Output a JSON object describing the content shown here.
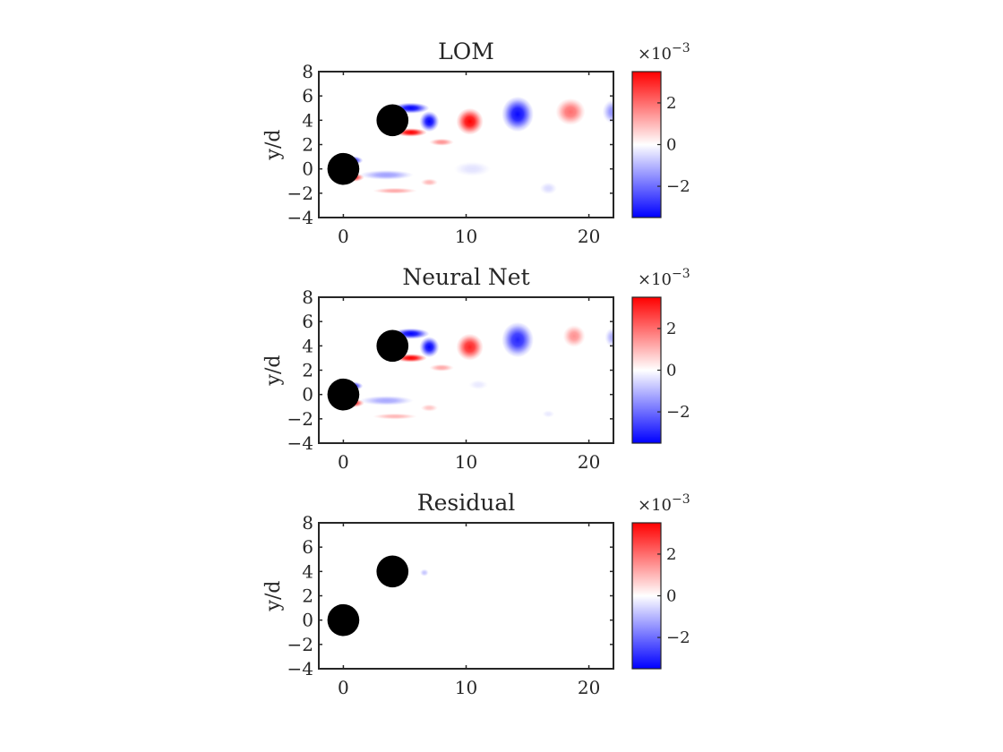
{
  "chart_data": [
    {
      "type": "heatmap",
      "title": "LOM",
      "xlabel": "",
      "ylabel": "y/d",
      "xlim": [
        -2,
        22
      ],
      "ylim": [
        -4,
        8
      ],
      "xticks": [
        "0",
        "10",
        "20"
      ],
      "yticks": [
        "-4",
        "-2",
        "0",
        "2",
        "4",
        "6",
        "8"
      ],
      "colorbar": {
        "exponent": "×10^-3",
        "ticks": [
          "2",
          "0",
          "-2"
        ],
        "range": [
          -3.5,
          3.5
        ],
        "colormap": [
          "#0000ff",
          "#ffffff",
          "#ff0000"
        ]
      },
      "cylinders": [
        {
          "x": 0,
          "y": 0
        },
        {
          "x": 4,
          "y": 4
        }
      ],
      "vortices": [
        {
          "x": 5.5,
          "y": 5.0,
          "sx": 1.5,
          "sy": 0.45,
          "value": -3.5
        },
        {
          "x": 7.0,
          "y": 3.9,
          "sx": 0.8,
          "sy": 0.85,
          "value": -3.5
        },
        {
          "x": 5.5,
          "y": 3.0,
          "sx": 1.3,
          "sy": 0.35,
          "value": 3.5
        },
        {
          "x": 10.3,
          "y": 3.9,
          "sx": 1.1,
          "sy": 1.1,
          "value": 3.5
        },
        {
          "x": 14.2,
          "y": 4.5,
          "sx": 1.3,
          "sy": 1.45,
          "value": -3.4
        },
        {
          "x": 18.5,
          "y": 4.7,
          "sx": 1.2,
          "sy": 1.1,
          "value": 2.0
        },
        {
          "x": 22.0,
          "y": 4.7,
          "sx": 0.9,
          "sy": 1.0,
          "value": -1.6
        },
        {
          "x": 8.0,
          "y": 2.2,
          "sx": 1.0,
          "sy": 0.3,
          "value": 1.5
        },
        {
          "x": 0.8,
          "y": 0.7,
          "sx": 0.8,
          "sy": 0.35,
          "value": -3.0
        },
        {
          "x": 0.8,
          "y": -0.7,
          "sx": 0.9,
          "sy": 0.35,
          "value": 3.0
        },
        {
          "x": 3.5,
          "y": -0.5,
          "sx": 2.2,
          "sy": 0.4,
          "value": -1.3
        },
        {
          "x": 4.2,
          "y": -1.8,
          "sx": 1.8,
          "sy": 0.25,
          "value": 1.2
        },
        {
          "x": 7.0,
          "y": -1.1,
          "sx": 0.7,
          "sy": 0.3,
          "value": 1.0
        },
        {
          "x": 10.5,
          "y": 0.0,
          "sx": 1.5,
          "sy": 0.6,
          "value": -0.4
        },
        {
          "x": 16.7,
          "y": -1.6,
          "sx": 0.7,
          "sy": 0.5,
          "value": -0.5
        }
      ]
    },
    {
      "type": "heatmap",
      "title": "Neural Net",
      "xlabel": "",
      "ylabel": "y/d",
      "xlim": [
        -2,
        22
      ],
      "ylim": [
        -4,
        8
      ],
      "xticks": [
        "0",
        "10",
        "20"
      ],
      "yticks": [
        "-4",
        "-2",
        "0",
        "2",
        "4",
        "6",
        "8"
      ],
      "colorbar": {
        "exponent": "×10^-3",
        "ticks": [
          "2",
          "0",
          "-2"
        ],
        "range": [
          -3.5,
          3.5
        ],
        "colormap": [
          "#0000ff",
          "#ffffff",
          "#ff0000"
        ]
      },
      "cylinders": [
        {
          "x": 0,
          "y": 0
        },
        {
          "x": 4,
          "y": 4
        }
      ],
      "vortices": [
        {
          "x": 5.5,
          "y": 5.0,
          "sx": 1.5,
          "sy": 0.45,
          "value": -3.5
        },
        {
          "x": 7.0,
          "y": 3.9,
          "sx": 0.8,
          "sy": 0.85,
          "value": -3.5
        },
        {
          "x": 5.5,
          "y": 3.0,
          "sx": 1.3,
          "sy": 0.35,
          "value": 3.5
        },
        {
          "x": 10.3,
          "y": 3.9,
          "sx": 1.1,
          "sy": 1.1,
          "value": 3.0
        },
        {
          "x": 14.2,
          "y": 4.5,
          "sx": 1.3,
          "sy": 1.45,
          "value": -3.0
        },
        {
          "x": 18.8,
          "y": 4.8,
          "sx": 0.9,
          "sy": 0.9,
          "value": 1.5
        },
        {
          "x": 22.0,
          "y": 4.7,
          "sx": 0.7,
          "sy": 0.8,
          "value": -1.2
        },
        {
          "x": 8.0,
          "y": 2.2,
          "sx": 1.0,
          "sy": 0.3,
          "value": 1.2
        },
        {
          "x": 0.8,
          "y": 0.7,
          "sx": 0.8,
          "sy": 0.35,
          "value": -3.0
        },
        {
          "x": 0.8,
          "y": -0.7,
          "sx": 0.9,
          "sy": 0.35,
          "value": 3.0
        },
        {
          "x": 3.5,
          "y": -0.5,
          "sx": 2.2,
          "sy": 0.4,
          "value": -1.2
        },
        {
          "x": 4.2,
          "y": -1.8,
          "sx": 1.8,
          "sy": 0.25,
          "value": 1.0
        },
        {
          "x": 7.0,
          "y": -1.1,
          "sx": 0.7,
          "sy": 0.3,
          "value": 0.8
        },
        {
          "x": 11.0,
          "y": 0.8,
          "sx": 0.8,
          "sy": 0.4,
          "value": -0.3
        },
        {
          "x": 16.7,
          "y": -1.6,
          "sx": 0.5,
          "sy": 0.3,
          "value": -0.3
        }
      ]
    },
    {
      "type": "heatmap",
      "title": "Residual",
      "xlabel": "",
      "ylabel": "y/d",
      "xlim": [
        -2,
        22
      ],
      "ylim": [
        -4,
        8
      ],
      "xticks": [
        "0",
        "10",
        "20"
      ],
      "yticks": [
        "-4",
        "-2",
        "0",
        "2",
        "4",
        "6",
        "8"
      ],
      "colorbar": {
        "exponent": "×10^-3",
        "ticks": [
          "2",
          "0",
          "-2"
        ],
        "range": [
          -3.5,
          3.5
        ],
        "colormap": [
          "#0000ff",
          "#ffffff",
          "#ff0000"
        ]
      },
      "cylinders": [
        {
          "x": 0,
          "y": 0
        },
        {
          "x": 4,
          "y": 4
        }
      ],
      "vortices": [
        {
          "x": 6.6,
          "y": 3.9,
          "sx": 0.35,
          "sy": 0.3,
          "value": -0.8
        }
      ]
    }
  ]
}
